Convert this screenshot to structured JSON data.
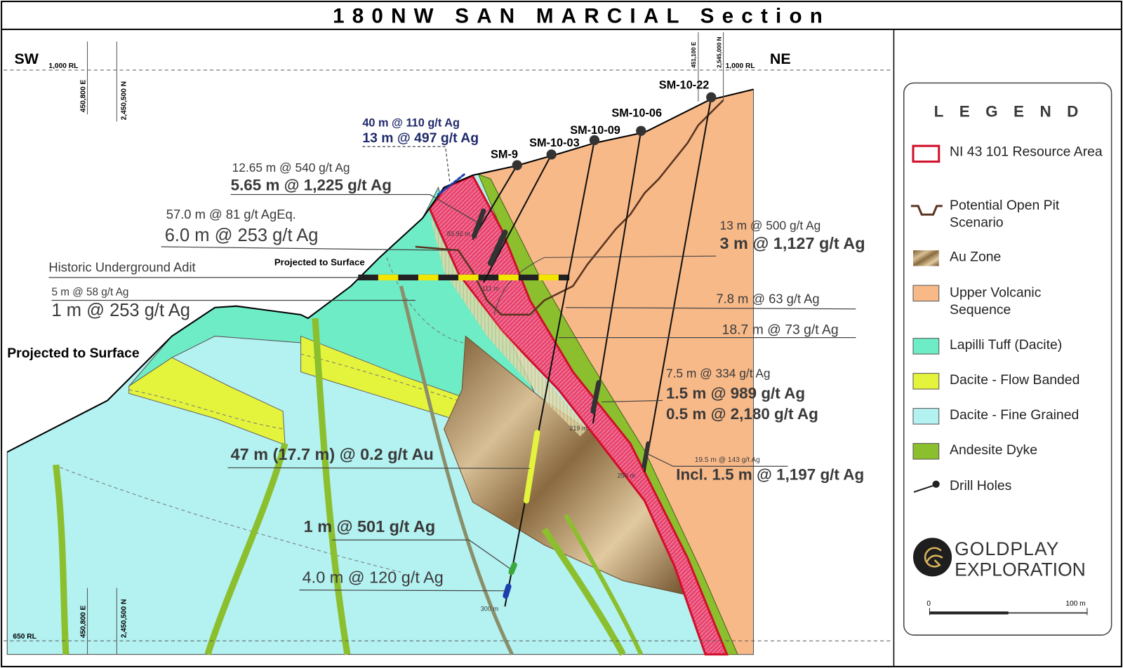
{
  "header": {
    "title": "180NW SAN MARCIAL Section"
  },
  "section": {
    "left_end": "SW",
    "right_end": "NE",
    "rl_top_left": "1,000 RL",
    "rl_top_right": "1,000 RL",
    "rl_bottom": "650 RL",
    "grid_top_left_e": "450,800 E",
    "grid_top_left_n": "2,450,500 N",
    "grid_top_right_e": "451,100 E",
    "grid_top_right_n": "2,545,000 N",
    "grid_bottom_e": "450,800 E",
    "grid_bottom_n": "2,450,500 N"
  },
  "drill_holes": [
    "SM-10-22",
    "SM-10-06",
    "SM-10-09",
    "SM-10-03",
    "SM-9"
  ],
  "depth_labels": [
    "83.92 m",
    "111 m",
    "219 m",
    "250 m",
    "300 m"
  ],
  "intercepts": [
    {
      "lines": [
        "40 m @ 110 g/t Ag",
        "13 m @ 497 g/t Ag"
      ]
    },
    {
      "lines": [
        "12.65 m @ 540 g/t Ag",
        "5.65 m @ 1,225 g/t Ag"
      ]
    },
    {
      "lines": [
        "57.0 m @ 81 g/t AgEq.",
        "6.0 m @ 253 g/t Ag"
      ]
    },
    {
      "lines": [
        "5 m @ 58 g/t Ag",
        "1 m @ 253 g/t Ag"
      ]
    },
    {
      "lines": [
        "13 m @ 500 g/t Ag",
        "3 m @ 1,127 g/t Ag"
      ]
    },
    {
      "lines": [
        "7.8 m @ 63 g/t Ag"
      ]
    },
    {
      "lines": [
        "18.7 m @ 73 g/t Ag"
      ]
    },
    {
      "lines": [
        "7.5 m @ 334 g/t Ag",
        "1.5 m @ 989 g/t Ag",
        "0.5 m @ 2,180 g/t Ag"
      ]
    },
    {
      "lines": [
        "19.5 m @ 143 g/t Ag",
        "Incl. 1.5 m @ 1,197 g/t Ag"
      ]
    },
    {
      "lines": [
        "47 m (17.7 m) @ 0.2 g/t Au"
      ]
    },
    {
      "lines": [
        "1 m @ 501 g/t Ag"
      ]
    },
    {
      "lines": [
        "4.0 m @ 120 g/t Ag"
      ]
    }
  ],
  "notes": {
    "adit": "Historic Underground Adit",
    "adit_projected": "Projected to Surface",
    "left_projected": "Projected to Surface"
  },
  "legend": {
    "title": "LEGEND",
    "items": [
      "NI 43 101 Resource Area",
      "Potential Open Pit Scenario",
      "Au Zone",
      "Upper Volcanic Sequence",
      "Lapilli Tuff (Dacite)",
      "Dacite - Flow Banded",
      "Dacite - Fine Grained",
      "Andesite Dyke",
      "Drill Holes"
    ]
  },
  "logo": {
    "line1": "GOLDPLAY",
    "line2": "EXPLORATION"
  },
  "scale": {
    "start": "0",
    "end": "100 m"
  }
}
